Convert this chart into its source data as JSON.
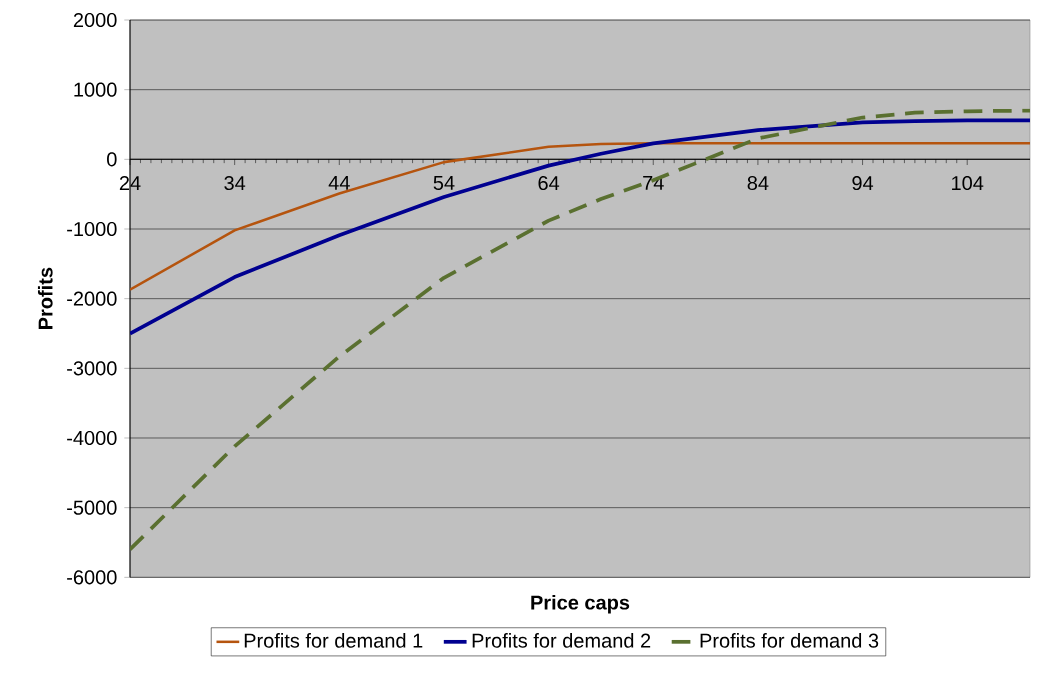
{
  "chart_data": {
    "type": "line",
    "xlabel": "Price caps",
    "ylabel": "Profits",
    "x": [
      24,
      34,
      44,
      54,
      64,
      69,
      74,
      84,
      94,
      99,
      104,
      110
    ],
    "series": [
      {
        "name": "Profits for demand 1",
        "color": "#b5540e",
        "line_style": "solid",
        "values": [
          -1870,
          -1020,
          -490,
          -40,
          180,
          220,
          230,
          230,
          230,
          230,
          230,
          230
        ]
      },
      {
        "name": "Profits for demand 2",
        "color": "#000090",
        "line_style": "solid",
        "values": [
          -2500,
          -1690,
          -1090,
          -540,
          -90,
          80,
          230,
          420,
          530,
          550,
          560,
          560
        ]
      },
      {
        "name": "Profits for demand 3",
        "color": "#5a7030",
        "line_style": "dashed",
        "values": [
          -5600,
          -4120,
          -2830,
          -1700,
          -880,
          -570,
          -300,
          300,
          600,
          670,
          690,
          700
        ]
      }
    ],
    "xlim": [
      24,
      110
    ],
    "ylim": [
      -6000,
      2000
    ],
    "xticks": [
      24,
      34,
      44,
      54,
      64,
      74,
      84,
      94,
      104
    ],
    "yticks": [
      -6000,
      -5000,
      -4000,
      -3000,
      -2000,
      -1000,
      0,
      1000,
      2000
    ],
    "grid": "y",
    "legend": "bottom",
    "marker": "none"
  }
}
